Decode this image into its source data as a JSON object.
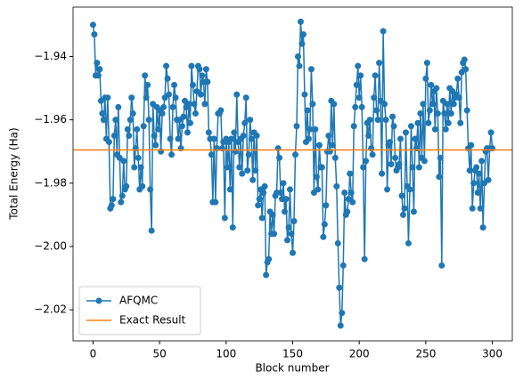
{
  "chart_data": {
    "type": "line",
    "xlabel": "Block number",
    "ylabel": "Total Energy (Ha)",
    "x": [
      0,
      1,
      2,
      3,
      4,
      5,
      6,
      7,
      8,
      9,
      10,
      11,
      12,
      13,
      14,
      15,
      16,
      17,
      18,
      19,
      20,
      21,
      22,
      23,
      24,
      25,
      26,
      27,
      28,
      29,
      30,
      31,
      32,
      33,
      34,
      35,
      36,
      37,
      38,
      39,
      40,
      41,
      42,
      43,
      44,
      45,
      46,
      47,
      48,
      49,
      50,
      51,
      52,
      53,
      54,
      55,
      56,
      57,
      58,
      59,
      60,
      61,
      62,
      63,
      64,
      65,
      66,
      67,
      68,
      69,
      70,
      71,
      72,
      73,
      74,
      75,
      76,
      77,
      78,
      79,
      80,
      81,
      82,
      83,
      84,
      85,
      86,
      87,
      88,
      89,
      90,
      91,
      92,
      93,
      94,
      95,
      96,
      97,
      98,
      99,
      100,
      101,
      102,
      103,
      104,
      105,
      106,
      107,
      108,
      109,
      110,
      111,
      112,
      113,
      114,
      115,
      116,
      117,
      118,
      119,
      120,
      121,
      122,
      123,
      124,
      125,
      126,
      127,
      128,
      129,
      130,
      131,
      132,
      133,
      134,
      135,
      136,
      137,
      138,
      139,
      140,
      141,
      142,
      143,
      144,
      145,
      146,
      147,
      148,
      149,
      150,
      151,
      152,
      153,
      154,
      155,
      156,
      157,
      158,
      159,
      160,
      161,
      162,
      163,
      164,
      165,
      166,
      167,
      168,
      169,
      170,
      171,
      172,
      173,
      174,
      175,
      176,
      177,
      178,
      179,
      180,
      181,
      182,
      183,
      184,
      185,
      186,
      187,
      188,
      189,
      190,
      191,
      192,
      193,
      194,
      195,
      196,
      197,
      198,
      199,
      200,
      201,
      202,
      203,
      204,
      205,
      206,
      207,
      208,
      209,
      210,
      211,
      212,
      213,
      214,
      215,
      216,
      217,
      218,
      219,
      220,
      221,
      222,
      223,
      224,
      225,
      226,
      227,
      228,
      229,
      230,
      231,
      232,
      233,
      234,
      235,
      236,
      237,
      238,
      239,
      240,
      241,
      242,
      243,
      244,
      245,
      246,
      247,
      248,
      249,
      250,
      251,
      252,
      253,
      254,
      255,
      256,
      257,
      258,
      259,
      260,
      261,
      262,
      263,
      264,
      265,
      266,
      267,
      268,
      269,
      270,
      271,
      272,
      273,
      274,
      275,
      276,
      277,
      278,
      279,
      280,
      281,
      282,
      283,
      284,
      285,
      286,
      287,
      288,
      289,
      290,
      291,
      292,
      293,
      294,
      295,
      296,
      297,
      298,
      299,
      300
    ],
    "series": [
      {
        "name": "AFQMC",
        "color": "#1f77b4",
        "marker": "o",
        "values": [
          -1.93,
          -1.933,
          -1.946,
          -1.942,
          -1.946,
          -1.944,
          -1.954,
          -1.958,
          -1.96,
          -1.953,
          -1.966,
          -1.953,
          -1.967,
          -1.988,
          -1.987,
          -1.985,
          -1.965,
          -1.96,
          -1.971,
          -1.956,
          -1.972,
          -1.986,
          -1.984,
          -1.973,
          -1.982,
          -1.981,
          -1.963,
          -1.965,
          -1.96,
          -1.953,
          -1.958,
          -1.975,
          -1.969,
          -1.963,
          -1.972,
          -1.982,
          -1.975,
          -1.981,
          -1.962,
          -1.946,
          -1.953,
          -1.949,
          -1.96,
          -1.982,
          -1.995,
          -1.955,
          -1.965,
          -1.968,
          -1.956,
          -1.963,
          -1.957,
          -1.97,
          -1.958,
          -1.956,
          -1.953,
          -1.943,
          -1.947,
          -1.952,
          -1.966,
          -1.971,
          -1.956,
          -1.949,
          -1.953,
          -1.96,
          -1.966,
          -1.96,
          -1.969,
          -1.962,
          -1.959,
          -1.954,
          -1.956,
          -1.964,
          -1.955,
          -1.961,
          -1.943,
          -1.949,
          -1.955,
          -1.958,
          -1.951,
          -1.943,
          -1.944,
          -1.952,
          -1.946,
          -1.948,
          -1.955,
          -1.944,
          -1.948,
          -1.964,
          -1.966,
          -1.971,
          -1.986,
          -1.966,
          -1.986,
          -1.969,
          -1.958,
          -1.958,
          -1.957,
          -1.969,
          -1.967,
          -1.991,
          -1.966,
          -1.975,
          -1.967,
          -1.982,
          -1.966,
          -1.994,
          -1.964,
          -1.97,
          -1.952,
          -1.967,
          -1.975,
          -1.966,
          -1.977,
          -1.965,
          -1.961,
          -1.953,
          -1.976,
          -1.971,
          -1.96,
          -1.966,
          -1.979,
          -1.964,
          -1.976,
          -1.965,
          -1.987,
          -1.985,
          -1.982,
          -1.991,
          -1.983,
          -1.981,
          -2.009,
          -2.005,
          -2.004,
          -1.989,
          -1.996,
          -1.99,
          -1.996,
          -1.984,
          -1.983,
          -1.969,
          -1.972,
          -1.983,
          -1.985,
          -1.98,
          -1.989,
          -1.985,
          -1.998,
          -1.994,
          -1.982,
          -1.996,
          -2.002,
          -1.992,
          -1.971,
          -1.962,
          -1.94,
          -1.943,
          -1.929,
          -1.936,
          -1.933,
          -1.952,
          -1.967,
          -1.957,
          -1.966,
          -1.963,
          -1.944,
          -1.955,
          -1.983,
          -1.963,
          -1.978,
          -1.982,
          -1.968,
          -1.975,
          -1.975,
          -1.997,
          -1.993,
          -1.987,
          -1.97,
          -1.965,
          -1.97,
          -1.954,
          -1.968,
          -1.955,
          -1.972,
          -1.981,
          -1.999,
          -2.013,
          -2.025,
          -2.021,
          -2.006,
          -1.983,
          -1.99,
          -1.989,
          -1.985,
          -1.977,
          -1.983,
          -1.986,
          -1.962,
          -1.956,
          -1.949,
          -1.943,
          -1.953,
          -1.946,
          -1.956,
          -1.975,
          -2.004,
          -1.973,
          -1.961,
          -1.965,
          -1.96,
          -1.969,
          -1.971,
          -1.953,
          -1.946,
          -1.957,
          -1.96,
          -1.942,
          -1.954,
          -1.977,
          -1.932,
          -1.955,
          -1.96,
          -1.982,
          -1.968,
          -1.967,
          -1.974,
          -1.959,
          -1.962,
          -1.972,
          -1.976,
          -1.975,
          -1.974,
          -1.966,
          -1.984,
          -1.99,
          -1.988,
          -1.964,
          -1.981,
          -1.999,
          -1.982,
          -1.962,
          -1.975,
          -1.989,
          -1.966,
          -1.969,
          -1.961,
          -1.975,
          -1.958,
          -1.972,
          -1.955,
          -1.973,
          -1.947,
          -1.942,
          -1.961,
          -1.957,
          -1.949,
          -1.955,
          -1.951,
          -1.963,
          -1.95,
          -1.958,
          -1.978,
          -1.972,
          -2.006,
          -1.954,
          -1.958,
          -1.963,
          -1.955,
          -1.961,
          -1.95,
          -1.958,
          -1.951,
          -1.955,
          -1.953,
          -1.952,
          -1.947,
          -1.953,
          -1.961,
          -1.945,
          -1.942,
          -1.941,
          -1.944,
          -1.957,
          -1.969,
          -1.976,
          -1.968,
          -1.988,
          -1.98,
          -1.976,
          -1.975,
          -1.983,
          -1.977,
          -1.988,
          -1.973,
          -1.994,
          -1.98,
          -1.97,
          -1.969,
          -1.979,
          -1.969,
          -1.964,
          -1.969
        ]
      }
    ],
    "hlines": [
      {
        "name": "Exact Result",
        "color": "#ff7f0e",
        "value": -1.9695
      }
    ],
    "xlim": [
      -15,
      315
    ],
    "ylim": [
      -2.0298,
      -1.9244
    ],
    "xticks": [
      0,
      50,
      100,
      150,
      200,
      250,
      300
    ],
    "yticks": [
      {
        "value": -2.02,
        "label": "−2.02"
      },
      {
        "value": -2.0,
        "label": "−2.00"
      },
      {
        "value": -1.98,
        "label": "−1.98"
      },
      {
        "value": -1.96,
        "label": "−1.96"
      },
      {
        "value": -1.94,
        "label": "−1.94"
      }
    ],
    "legend": "lower left"
  }
}
